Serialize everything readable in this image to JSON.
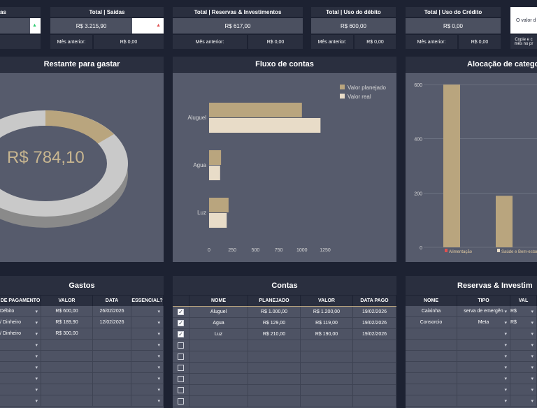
{
  "summary": {
    "saidas": {
      "title": "Total | Saídas",
      "value": "R$ 3.215,90",
      "prev_label": "Mês anterior:",
      "prev_value": "R$ 0,00"
    },
    "reservas": {
      "title": "Total | Reservas & Investimentos",
      "value": "R$ 617,00",
      "prev_label": "Mês anterior:",
      "prev_value": "R$ 0,00"
    },
    "debito": {
      "title": "Total | Uso do débito",
      "value": "R$ 600,00",
      "prev_label": "Mês anterior:",
      "prev_value": "R$ 0,00"
    },
    "credito": {
      "title": "Total | Uso do Crédito",
      "value": "R$ 0,00",
      "prev_label": "Mês anterior:",
      "prev_value": "R$ 0,00"
    },
    "left_partial_title": "as",
    "right_partial_top": "O valor d",
    "right_partial_bottom_1": "Copie e c",
    "right_partial_bottom_2": "mês no pr"
  },
  "restante": {
    "title": "Restante para gastar",
    "value": "R$ 784,10"
  },
  "fluxo": {
    "title": "Fluxo de contas",
    "legend": [
      "Valor planejado",
      "Valor real"
    ]
  },
  "alocacao": {
    "title": "Alocação de categor"
  },
  "gastos": {
    "title": "Gastos",
    "columns": [
      "DE PAGAMENTO",
      "VALOR",
      "DATA",
      "ESSENCIAL?"
    ],
    "rows": [
      [
        "Débito",
        "R$ 600,00",
        "26/02/2026",
        ""
      ],
      [
        "/ Dinheiro",
        "R$ 189,90",
        "12/02/2026",
        ""
      ],
      [
        "/ Dinheiro",
        "R$ 300,00",
        "",
        ""
      ]
    ]
  },
  "contas": {
    "title": "Contas",
    "columns": [
      "NOME",
      "PLANEJADO",
      "VALOR",
      "DATA PAGO"
    ],
    "rows": [
      {
        "checked": "✓",
        "cells": [
          "Aluguel",
          "R$ 1.000,00",
          "R$ 1.200,00",
          "19/02/2026"
        ]
      },
      {
        "checked": "✓",
        "cells": [
          "Agua",
          "R$ 129,00",
          "R$ 119,00",
          "19/02/2026"
        ]
      },
      {
        "checked": "✓",
        "cells": [
          "Luz",
          "R$ 210,00",
          "R$ 190,00",
          "19/02/2026"
        ]
      }
    ]
  },
  "reservas_table": {
    "title": "Reservas & Investim",
    "columns": [
      "NOME",
      "TIPO",
      "VAL"
    ],
    "rows": [
      [
        "Caixinha",
        "serva de emergên",
        "R$"
      ],
      [
        "Consorcio",
        "Meta",
        "R$"
      ]
    ]
  },
  "chart_data": [
    {
      "type": "pie",
      "title": "Restante para gastar",
      "center_label": "R$ 784,10",
      "colors": [
        "#b9a57e",
        "#c9c9c9"
      ]
    },
    {
      "type": "bar",
      "orientation": "horizontal",
      "title": "Fluxo de contas",
      "categories": [
        "Aluguel",
        "Agua",
        "Luz"
      ],
      "series": [
        {
          "name": "Valor planejado",
          "values": [
            1000,
            129,
            210
          ],
          "color": "#b9a57e"
        },
        {
          "name": "Valor real",
          "values": [
            1200,
            119,
            190
          ],
          "color": "#e8dcc8"
        }
      ],
      "xlim": [
        0,
        1250
      ],
      "xticks": [
        "0",
        "250",
        "500",
        "750",
        "1000",
        "1250"
      ],
      "legend": "top-right"
    },
    {
      "type": "bar",
      "title": "Alocação de categor",
      "categories": [
        "Alimentação",
        "Saúde e Bem-estar"
      ],
      "values": [
        600,
        190
      ],
      "ylim": [
        0,
        600
      ],
      "yticks": [
        "0",
        "200",
        "400",
        "600"
      ],
      "color": "#b9a57e",
      "grid": true
    }
  ],
  "colors": {
    "accent": "#b9a57e",
    "light": "#e8dcc8",
    "panel": "#565b6c",
    "header": "#2a2f3f",
    "background": "#1d2232",
    "up_arrow": "#2ecc71",
    "down_arrow": "#e05050"
  }
}
